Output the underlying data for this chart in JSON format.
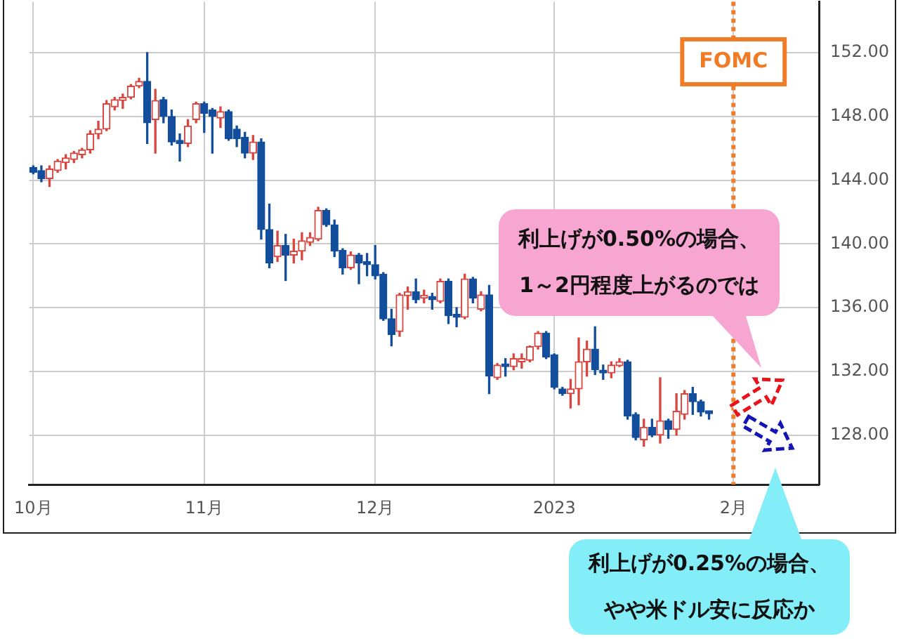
{
  "chart_data": {
    "type": "candlestick",
    "categories": [
      "10月",
      null,
      null,
      null,
      null,
      null,
      null,
      null,
      null,
      null,
      null,
      null,
      null,
      null,
      null,
      null,
      null,
      null,
      null,
      null,
      null,
      "11月",
      null,
      null,
      null,
      null,
      null,
      null,
      null,
      null,
      null,
      null,
      null,
      null,
      null,
      null,
      null,
      null,
      null,
      null,
      null,
      null,
      "12月",
      null,
      null,
      null,
      null,
      null,
      null,
      null,
      null,
      null,
      null,
      null,
      null,
      null,
      null,
      null,
      null,
      null,
      null,
      null,
      null,
      null,
      "2023",
      null,
      null,
      null,
      null,
      null,
      null,
      null,
      null,
      null,
      null,
      null,
      null,
      null,
      null,
      null,
      null,
      null,
      null,
      null,
      null,
      null,
      "2月",
      null,
      null,
      null,
      null,
      null,
      null,
      null,
      null,
      null,
      null
    ],
    "ohlc": [
      [
        144.8,
        144.9,
        144.4,
        144.5
      ],
      [
        144.6,
        144.9,
        143.9,
        144.1
      ],
      [
        144.1,
        144.9,
        143.6,
        144.7
      ],
      [
        144.6,
        145.3,
        144.5,
        145.2
      ],
      [
        145.1,
        145.6,
        144.7,
        145.4
      ],
      [
        145.3,
        145.8,
        145.1,
        145.7
      ],
      [
        145.6,
        146.0,
        145.4,
        145.9
      ],
      [
        145.9,
        147.1,
        145.7,
        146.9
      ],
      [
        146.9,
        147.7,
        146.6,
        147.2
      ],
      [
        147.2,
        149.0,
        147.1,
        148.8
      ],
      [
        148.6,
        149.2,
        148.4,
        149.05
      ],
      [
        149.0,
        149.4,
        148.5,
        149.2
      ],
      [
        149.2,
        150.0,
        149.1,
        149.9
      ],
      [
        149.9,
        150.4,
        149.8,
        150.2
      ],
      [
        150.2,
        152.0,
        146.3,
        147.6
      ],
      [
        147.8,
        149.7,
        145.7,
        149.0
      ],
      [
        149.05,
        149.2,
        147.6,
        148.0
      ],
      [
        148.0,
        148.4,
        146.2,
        146.4
      ],
      [
        146.5,
        146.9,
        145.2,
        146.3
      ],
      [
        146.3,
        147.8,
        146.1,
        147.4
      ],
      [
        147.8,
        148.9,
        147.6,
        148.8
      ],
      [
        148.8,
        148.9,
        147.0,
        148.2
      ],
      [
        148.4,
        148.5,
        145.7,
        148.0
      ],
      [
        147.9,
        148.6,
        147.3,
        148.3
      ],
      [
        148.3,
        148.4,
        146.5,
        146.6
      ],
      [
        147.2,
        147.4,
        146.1,
        146.6
      ],
      [
        146.7,
        147.0,
        145.4,
        145.7
      ],
      [
        145.7,
        146.8,
        145.3,
        146.4
      ],
      [
        146.4,
        146.6,
        140.3,
        140.9
      ],
      [
        140.9,
        142.5,
        138.5,
        138.8
      ],
      [
        139.2,
        140.8,
        138.9,
        139.9
      ],
      [
        139.9,
        140.6,
        137.7,
        139.3
      ],
      [
        139.3,
        140.3,
        138.8,
        139.55
      ],
      [
        139.55,
        140.7,
        139.0,
        140.2
      ],
      [
        140.1,
        140.7,
        139.9,
        140.4
      ],
      [
        140.3,
        142.3,
        140.2,
        142.1
      ],
      [
        142.1,
        142.2,
        141.1,
        141.2
      ],
      [
        141.2,
        141.5,
        139.2,
        139.55
      ],
      [
        139.6,
        139.7,
        138.1,
        138.5
      ],
      [
        138.5,
        139.5,
        138.4,
        139.3
      ],
      [
        139.3,
        139.4,
        137.5,
        138.8
      ],
      [
        138.9,
        139.4,
        138.0,
        138.7
      ],
      [
        138.7,
        139.9,
        137.8,
        138.0
      ],
      [
        138.1,
        138.2,
        135.2,
        135.3
      ],
      [
        135.3,
        135.9,
        133.6,
        134.3
      ],
      [
        134.5,
        136.9,
        134.2,
        136.8
      ],
      [
        136.75,
        137.3,
        135.9,
        137.0
      ],
      [
        137.0,
        137.8,
        136.3,
        136.5
      ],
      [
        136.6,
        137.1,
        136.3,
        136.7
      ],
      [
        136.7,
        136.9,
        135.9,
        136.5
      ],
      [
        136.4,
        137.8,
        136.3,
        137.65
      ],
      [
        137.65,
        137.8,
        135.0,
        135.5
      ],
      [
        135.5,
        136.0,
        134.8,
        135.4
      ],
      [
        135.4,
        138.1,
        135.3,
        137.8
      ],
      [
        137.8,
        137.9,
        136.3,
        136.6
      ],
      [
        135.9,
        137.0,
        135.8,
        136.8
      ],
      [
        136.8,
        137.4,
        130.6,
        131.7
      ],
      [
        131.6,
        132.5,
        131.5,
        132.4
      ],
      [
        132.4,
        132.8,
        131.7,
        132.3
      ],
      [
        132.3,
        133.1,
        132.1,
        132.8
      ],
      [
        132.6,
        133.1,
        132.2,
        132.8
      ],
      [
        132.7,
        133.6,
        132.6,
        133.55
      ],
      [
        133.55,
        134.5,
        133.4,
        134.4
      ],
      [
        134.4,
        134.5,
        132.8,
        132.9
      ],
      [
        133.05,
        133.1,
        130.9,
        131.0
      ],
      [
        130.9,
        131.0,
        130.5,
        130.6
      ],
      [
        130.6,
        131.5,
        129.7,
        130.9
      ],
      [
        130.9,
        134.1,
        129.9,
        132.6
      ],
      [
        132.6,
        133.9,
        131.7,
        133.4
      ],
      [
        133.4,
        134.8,
        131.8,
        132.1
      ],
      [
        132.0,
        132.4,
        131.5,
        131.9
      ],
      [
        131.9,
        132.6,
        131.6,
        132.4
      ],
      [
        132.35,
        132.8,
        132.3,
        132.6
      ],
      [
        132.6,
        132.7,
        129.0,
        129.2
      ],
      [
        129.3,
        129.4,
        127.7,
        127.85
      ],
      [
        127.7,
        129.0,
        127.3,
        128.5
      ],
      [
        128.5,
        129.0,
        127.9,
        128.0
      ],
      [
        128.0,
        131.6,
        127.5,
        128.9
      ],
      [
        128.9,
        129.0,
        127.8,
        128.35
      ],
      [
        128.35,
        130.6,
        128.0,
        129.5
      ],
      [
        129.3,
        130.8,
        129.0,
        130.6
      ],
      [
        130.6,
        131.0,
        129.3,
        130.1
      ],
      [
        130.1,
        130.2,
        129.2,
        129.45
      ],
      [
        129.45,
        129.5,
        129.0,
        129.35
      ],
      null,
      null,
      null,
      null,
      null,
      null,
      null,
      null,
      null,
      null,
      null,
      null,
      null
    ],
    "colors": [
      "#124e9c",
      "#124e9c",
      "#d9453f",
      "#d9453f",
      "#d9453f",
      "#d9453f",
      "#d9453f",
      "#d9453f",
      "#d9453f",
      "#d9453f",
      "#d9453f",
      "#d9453f",
      "#d9453f",
      "#d9453f",
      "#124e9c",
      "#d9453f",
      "#124e9c",
      "#124e9c",
      "#124e9c",
      "#d9453f",
      "#d9453f",
      "#124e9c",
      "#124e9c",
      "#d9453f",
      "#124e9c",
      "#124e9c",
      "#124e9c",
      "#d9453f",
      "#124e9c",
      "#124e9c",
      "#d9453f",
      "#124e9c",
      "#d9453f",
      "#d9453f",
      "#d9453f",
      "#d9453f",
      "#124e9c",
      "#124e9c",
      "#124e9c",
      "#d9453f",
      "#124e9c",
      "#124e9c",
      "#124e9c",
      "#124e9c",
      "#124e9c",
      "#d9453f",
      "#d9453f",
      "#124e9c",
      "#d9453f",
      "#124e9c",
      "#d9453f",
      "#124e9c",
      "#124e9c",
      "#d9453f",
      "#124e9c",
      "#d9453f",
      "#124e9c",
      "#d9453f",
      "#124e9c",
      "#d9453f",
      "#d9453f",
      "#d9453f",
      "#d9453f",
      "#124e9c",
      "#124e9c",
      "#124e9c",
      "#d9453f",
      "#d9453f",
      "#d9453f",
      "#124e9c",
      "#124e9c",
      "#d9453f",
      "#d9453f",
      "#124e9c",
      "#124e9c",
      "#d9453f",
      "#124e9c",
      "#d9453f",
      "#124e9c",
      "#d9453f",
      "#d9453f",
      "#124e9c",
      "#124e9c",
      "#124e9c",
      null,
      null,
      null,
      null,
      null,
      null,
      null,
      null,
      null,
      null,
      null,
      null,
      null
    ],
    "ylim": [
      124.9,
      155.2
    ],
    "yticks": [
      {
        "value": 128,
        "label": "128.00"
      },
      {
        "value": 132,
        "label": "132.00"
      },
      {
        "value": 136,
        "label": "136.00"
      },
      {
        "value": 140,
        "label": "140.00"
      },
      {
        "value": 144,
        "label": "144.00"
      },
      {
        "value": 148,
        "label": "148.00"
      },
      {
        "value": 152,
        "label": "152.00"
      }
    ],
    "grid": true,
    "ref_lines": [
      {
        "axis": "x",
        "value": "2月",
        "label": "FOMC",
        "color": "#f07c28",
        "line_style": "dotted"
      }
    ],
    "annotations": [
      "利上げが0.50%の場合、",
      "1～2円程度上がるのでは",
      "利上げが0.25%の場合、",
      "やや米ドル安に反応か"
    ]
  }
}
